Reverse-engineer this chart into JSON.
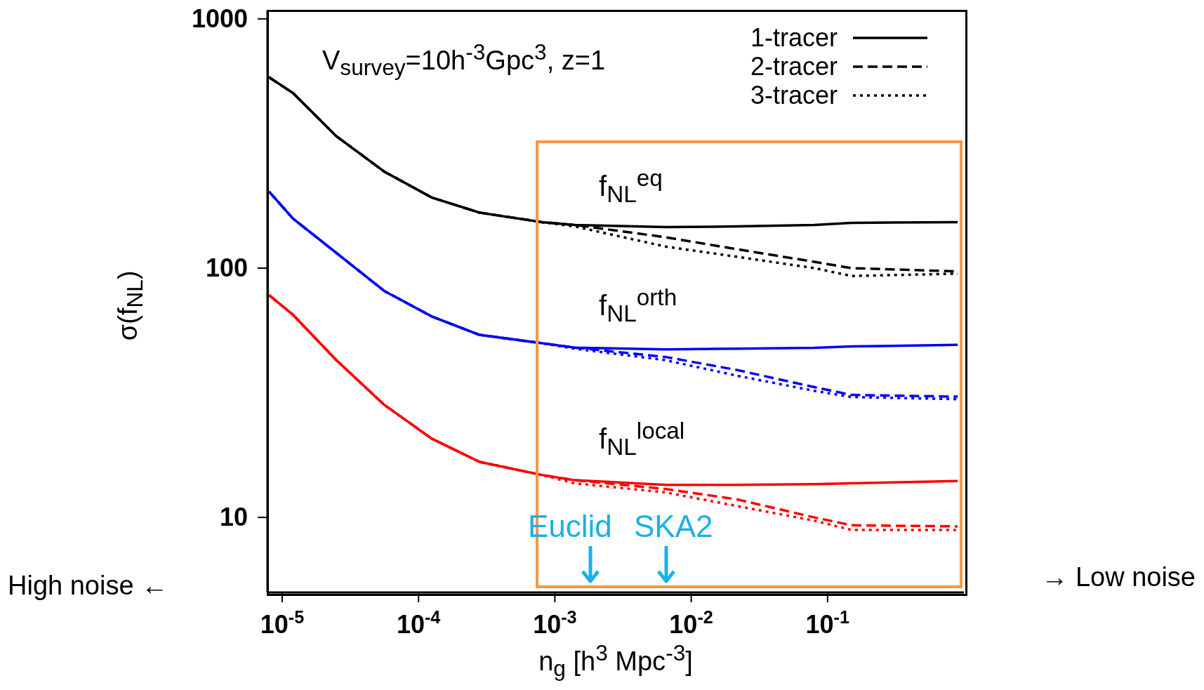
{
  "chart_data": {
    "type": "line",
    "title": "V$_{survey}$=10h$^{-3}$Gpc$^{3}$, z=1",
    "xlabel": "n$_{g}$ [h$^{3}$ Mpc$^{-3}$]",
    "ylabel": "σ(f$_{NL}$)",
    "log": "xy",
    "grid": false,
    "legend": "top right",
    "marker": "none",
    "xlim": [
      7.8e-06,
      1
    ],
    "ylim": [
      5,
      1080
    ],
    "xticks": [
      {
        "value": 1e-05,
        "label": "10$^{-5}$"
      },
      {
        "value": 0.0001,
        "label": "10$^{-4}$"
      },
      {
        "value": 0.001,
        "label": "10$^{-3}$"
      },
      {
        "value": 0.01,
        "label": "10$^{-2}$"
      },
      {
        "value": 0.1,
        "label": "10$^{-1}$"
      }
    ],
    "yticks": [
      10,
      100,
      1000
    ],
    "x": [
      8e-06,
      1.2e-05,
      2.5e-05,
      5.6e-05,
      0.000125,
      0.00028,
      0.0008,
      0.0014,
      0.0065,
      0.0218,
      0.08,
      0.15,
      0.9
    ],
    "series": [
      {
        "name": "1-tracer",
        "color": "#000000",
        "line_style": "solid",
        "values": [
          583,
          504,
          338,
          244,
          192,
          167,
          153,
          149,
          146,
          147,
          149,
          152,
          153
        ]
      },
      {
        "name": "2-tracer",
        "color": "#000000",
        "line_style": "dashed",
        "values": [
          583,
          504,
          338,
          244,
          192,
          167,
          153,
          149,
          133,
          119,
          106,
          100,
          97
        ]
      },
      {
        "name": "3-tracer",
        "color": "#000000",
        "line_style": "dotted",
        "values": [
          583,
          504,
          338,
          244,
          192,
          167,
          153,
          147,
          122,
          111,
          100,
          93,
          95
        ]
      },
      {
        "color": "#0000ff",
        "line_style": "solid",
        "values": [
          203,
          158,
          115,
          81,
          64,
          54,
          50,
          48,
          47.2,
          47.5,
          47.9,
          48.5,
          49.2
        ]
      },
      {
        "color": "#0000ff",
        "line_style": "dashed",
        "values": [
          203,
          158,
          115,
          81,
          64,
          54,
          50,
          48,
          44,
          39,
          33.3,
          31,
          30.5
        ]
      },
      {
        "color": "#0000ff",
        "line_style": "dotted",
        "values": [
          203,
          158,
          115,
          81,
          64,
          54,
          50,
          47.5,
          42.7,
          37,
          32.2,
          30.4,
          29.8
        ]
      },
      {
        "color": "#ff0000",
        "line_style": "solid",
        "values": [
          78,
          65,
          42.7,
          28.3,
          20.7,
          16.7,
          14.8,
          14.1,
          13.5,
          13.5,
          13.6,
          13.7,
          14
        ]
      },
      {
        "color": "#ff0000",
        "line_style": "dashed",
        "values": [
          78,
          65,
          42.7,
          28.3,
          20.7,
          16.7,
          14.8,
          14.1,
          13,
          11.8,
          10,
          9.3,
          9.2
        ]
      },
      {
        "color": "#ff0000",
        "line_style": "dotted",
        "values": [
          78,
          65,
          42.7,
          28.3,
          20.7,
          16.7,
          14.8,
          13.7,
          12.6,
          11.1,
          9.7,
          8.9,
          8.9
        ]
      }
    ],
    "annotations": [
      "f$_{NL}$$^{eq}$",
      "f$_{NL}$$^{orth}$",
      "f$_{NL}$$^{local}$",
      "Euclid",
      "SKA2",
      "High noise ←",
      "→ Low noise"
    ]
  }
}
